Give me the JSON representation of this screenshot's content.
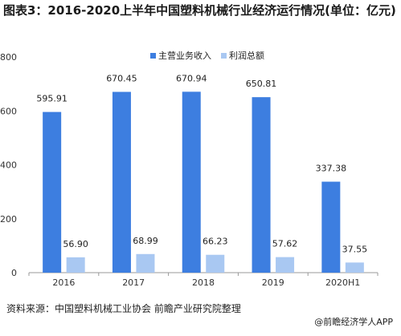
{
  "title": "图表3：2016-2020上半年中国塑料机械行业经济运行情况(单位：亿元)",
  "source": "资料来源：中国塑料机械工业协会 前瞻产业研究院整理",
  "brand": "@前瞻经济学人APP",
  "colors": {
    "series1": "#3d7ee0",
    "series2": "#a9c8f2"
  },
  "chart_data": {
    "type": "bar",
    "categories": [
      "2016",
      "2017",
      "2018",
      "2019",
      "2020H1"
    ],
    "ylim": [
      0,
      800
    ],
    "yticks": [
      0,
      200,
      400,
      600,
      800
    ],
    "grid": false,
    "legend": "top",
    "series": [
      {
        "name": "主营业务收入",
        "values": [
          595.91,
          670.45,
          670.94,
          650.81,
          337.38
        ],
        "labels": [
          "595.91",
          "670.45",
          "670.94",
          "650.81",
          "337.38"
        ]
      },
      {
        "name": "利润总额",
        "values": [
          56.9,
          68.99,
          66.23,
          57.62,
          37.55
        ],
        "labels": [
          "56.90",
          "68.99",
          "66.23",
          "57.62",
          "37.55"
        ]
      }
    ]
  }
}
